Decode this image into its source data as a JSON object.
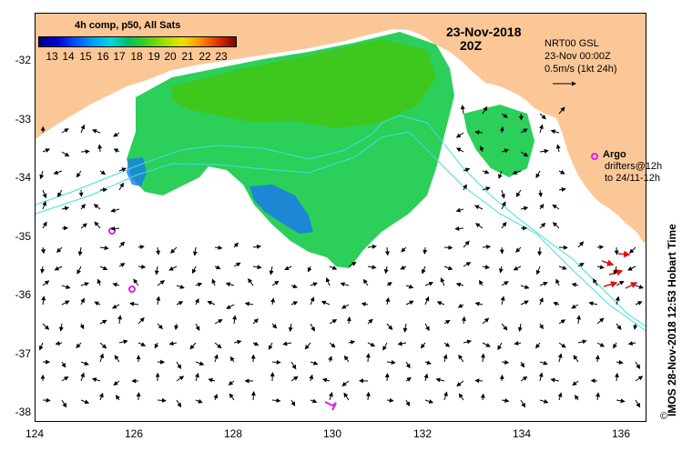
{
  "map": {
    "colorbar_title": "4h comp, p50, All Sats",
    "colorbar_ticks": [
      "13",
      "14",
      "15",
      "16",
      "17",
      "18",
      "19",
      "20",
      "21",
      "22",
      "23"
    ],
    "date": "23-Nov-2018",
    "hour": "20Z",
    "model": "NRT00 GSL",
    "model_time": "23-Nov 00:00Z",
    "scale_label": "0.5m/s (1kt 24h)",
    "argo_label": "Argo",
    "drifters_line1": "drifters@12h",
    "drifters_line2": "to 24/11-12h",
    "side_credit": "IMOS 28-Nov-2018 12:53 Hobart Time",
    "copyright": "©",
    "lat_ticks": [
      "-32",
      "-33",
      "-34",
      "-35",
      "-36",
      "-37",
      "-38"
    ],
    "lon_ticks": [
      "124",
      "126",
      "128",
      "130",
      "132",
      "134",
      "136"
    ],
    "colors": {
      "land": "#fcc797",
      "ocean": "#ffffff",
      "argo": "#e020e0",
      "drifter": "#e01010",
      "sst_mid": "#2ccf5a",
      "sst_warm": "#3ec81e",
      "sst_cool": "#1a7ae8"
    }
  }
}
